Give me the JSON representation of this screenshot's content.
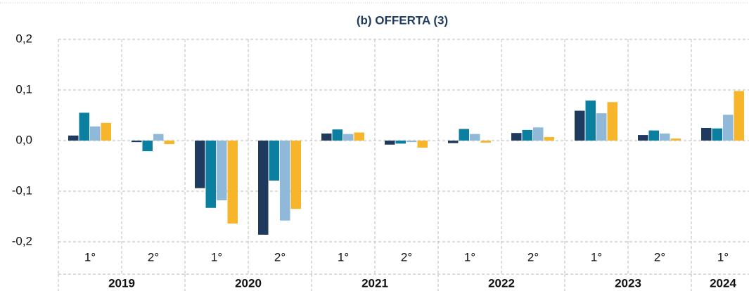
{
  "chart_data": {
    "type": "bar",
    "title": "(b) OFFERTA (3)",
    "categories": [
      "1°",
      "2°",
      "1°",
      "2°",
      "1°",
      "2°",
      "1°",
      "2°",
      "1°",
      "2°",
      "1°"
    ],
    "groups": [
      {
        "label": "2019",
        "span": 2
      },
      {
        "label": "2020",
        "span": 2
      },
      {
        "label": "2021",
        "span": 2
      },
      {
        "label": "2022",
        "span": 2
      },
      {
        "label": "2023",
        "span": 2
      },
      {
        "label": "2024",
        "span": 1
      }
    ],
    "series": [
      {
        "color": "#1f3a5f",
        "values": [
          0.01,
          -0.003,
          -0.094,
          -0.186,
          0.014,
          -0.008,
          -0.005,
          0.015,
          0.059,
          0.011,
          0.025
        ]
      },
      {
        "color": "#0a7fa0",
        "values": [
          0.055,
          -0.021,
          -0.133,
          -0.079,
          0.022,
          -0.006,
          0.023,
          0.021,
          0.079,
          0.02,
          0.024
        ]
      },
      {
        "color": "#8fb8d9",
        "values": [
          0.028,
          0.013,
          -0.118,
          -0.158,
          0.013,
          -0.003,
          0.013,
          0.026,
          0.054,
          0.014,
          0.051
        ]
      },
      {
        "color": "#f7b52b",
        "values": [
          0.035,
          -0.007,
          -0.164,
          -0.135,
          0.016,
          -0.014,
          -0.004,
          0.007,
          0.076,
          0.004,
          0.098
        ]
      }
    ],
    "ylim": [
      -0.2,
      0.2
    ],
    "yticks": [
      {
        "value": 0.2,
        "label": "0,2"
      },
      {
        "value": 0.1,
        "label": "0,1"
      },
      {
        "value": 0,
        "label": "0,0"
      },
      {
        "value": -0.1,
        "label": "-0,1"
      },
      {
        "value": -0.2,
        "label": "-0,2"
      }
    ],
    "grid": true
  }
}
